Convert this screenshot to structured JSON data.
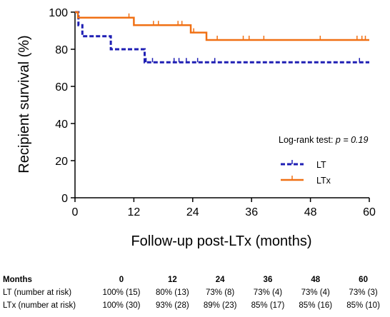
{
  "chart_data": {
    "type": "line",
    "step": true,
    "ylabel": "Recipient survival (%)",
    "xlabel": "Follow-up post-LTx (months)",
    "xlim": [
      0,
      60
    ],
    "ylim": [
      0,
      100
    ],
    "xticks": [
      0,
      12,
      24,
      36,
      48,
      60
    ],
    "yticks": [
      0,
      20,
      40,
      60,
      80,
      100
    ],
    "grid": false,
    "legend_position": "right",
    "annotation": {
      "prefix": "Log-rank test: ",
      "stat": "p",
      "eq": " = ",
      "value": "0.19"
    },
    "series": [
      {
        "name": "LT",
        "color": "#1f1fb4",
        "style": "dashed",
        "x": [
          0,
          0.7,
          1.5,
          7.3,
          14.2,
          60
        ],
        "y": [
          100,
          93,
          87,
          80,
          73,
          73
        ],
        "censored": [
          {
            "x": 14.5,
            "y": 73
          },
          {
            "x": 15.8,
            "y": 73
          },
          {
            "x": 20.2,
            "y": 73
          },
          {
            "x": 21.2,
            "y": 73
          },
          {
            "x": 22.7,
            "y": 73
          },
          {
            "x": 25.0,
            "y": 73
          },
          {
            "x": 28.5,
            "y": 73
          },
          {
            "x": 58.0,
            "y": 73
          }
        ]
      },
      {
        "name": "LTx",
        "color": "#f07014",
        "style": "solid",
        "x": [
          0,
          0.6,
          12,
          23.6,
          26.8,
          60
        ],
        "y": [
          100,
          97,
          93,
          89,
          85,
          85
        ],
        "censored": [
          {
            "x": 11.0,
            "y": 97
          },
          {
            "x": 16.0,
            "y": 93
          },
          {
            "x": 17.0,
            "y": 93
          },
          {
            "x": 21.0,
            "y": 93
          },
          {
            "x": 21.8,
            "y": 93
          },
          {
            "x": 24.2,
            "y": 89
          },
          {
            "x": 29.0,
            "y": 85
          },
          {
            "x": 34.3,
            "y": 85
          },
          {
            "x": 35.5,
            "y": 85
          },
          {
            "x": 38.5,
            "y": 85
          },
          {
            "x": 50.0,
            "y": 85
          },
          {
            "x": 57.5,
            "y": 85
          },
          {
            "x": 58.5,
            "y": 85
          },
          {
            "x": 59.2,
            "y": 85
          }
        ]
      }
    ]
  },
  "risk_table": {
    "header_label": "Months",
    "months": [
      "0",
      "12",
      "24",
      "36",
      "48",
      "60"
    ],
    "rows": [
      {
        "label": "LT (number at risk)",
        "values": [
          "100% (15)",
          "80% (13)",
          "73% (8)",
          "73% (4)",
          "73% (4)",
          "73% (3)"
        ]
      },
      {
        "label": "LTx (number at risk)",
        "values": [
          "100% (30)",
          "93% (28)",
          "89% (23)",
          "85% (17)",
          "85% (16)",
          "85% (10)"
        ]
      }
    ]
  }
}
